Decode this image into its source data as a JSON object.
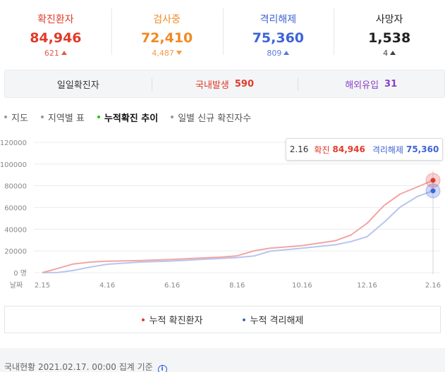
{
  "stats": [
    {
      "label": "확진환자",
      "value": "84,946",
      "delta": "621",
      "direction": "up",
      "color": "#e03b2a"
    },
    {
      "label": "검사중",
      "value": "72,410",
      "delta": "4,487",
      "direction": "down",
      "color": "#f08a24"
    },
    {
      "label": "격리해제",
      "value": "75,360",
      "delta": "809",
      "direction": "up",
      "color": "#3e64d6"
    },
    {
      "label": "사망자",
      "value": "1,538",
      "delta": "4",
      "direction": "up",
      "color": "#222222"
    }
  ],
  "daily": {
    "title": "일일확진자",
    "domestic_label": "국내발생",
    "domestic_value": "590",
    "overseas_label": "해외유입",
    "overseas_value": "31"
  },
  "tabs": [
    {
      "label": "지도",
      "active": false
    },
    {
      "label": "지역별 표",
      "active": false
    },
    {
      "label": "누적확진 추이",
      "active": true
    },
    {
      "label": "일별 신규 확진자수",
      "active": false
    }
  ],
  "tooltip": {
    "date": "2.16",
    "confirmed_label": "확진",
    "confirmed_value": "84,946",
    "released_label": "격리해제",
    "released_value": "75,360"
  },
  "chart_data": {
    "type": "line",
    "xlabel": "날짜",
    "x_ticks": [
      "2.15",
      "4.16",
      "6.16",
      "8.16",
      "10.16",
      "12.16",
      "2.16"
    ],
    "y_ticks": [
      "120000",
      "100000",
      "80000",
      "60000",
      "40000",
      "20000",
      "0 명"
    ],
    "ylim": [
      0,
      120000
    ],
    "grid": true,
    "series": [
      {
        "name": "누적 확진환자",
        "color": "#f2a5a5",
        "x": [
          "2.15",
          "3.1",
          "3.15",
          "4.1",
          "4.16",
          "5.16",
          "6.16",
          "7.16",
          "8.1",
          "8.16",
          "9.1",
          "9.16",
          "10.16",
          "11.16",
          "12.1",
          "12.16",
          "1.1",
          "1.16",
          "2.1",
          "2.16"
        ],
        "values": [
          0,
          4000,
          8000,
          9800,
          10600,
          11100,
          12100,
          13600,
          14300,
          15500,
          20100,
          22600,
          24900,
          29300,
          34700,
          45400,
          61800,
          72300,
          78800,
          84946
        ]
      },
      {
        "name": "누적 격리해제",
        "color": "#b8c5f0",
        "x": [
          "2.15",
          "3.1",
          "3.15",
          "4.1",
          "4.16",
          "5.16",
          "6.16",
          "7.16",
          "8.1",
          "8.16",
          "9.1",
          "9.16",
          "10.16",
          "11.16",
          "12.1",
          "12.16",
          "1.1",
          "1.16",
          "2.1",
          "2.16"
        ],
        "values": [
          0,
          100,
          2000,
          5300,
          7700,
          9700,
          10700,
          12300,
          13200,
          13900,
          15400,
          19800,
          22600,
          25600,
          28700,
          33100,
          46400,
          60300,
          70000,
          75360
        ]
      }
    ]
  },
  "legend": {
    "confirmed_label": "누적 확진환자",
    "released_label": "누적 격리해제"
  },
  "footer": {
    "text": "국내현황 2021.02.17. 00:00 집계 기준",
    "info_icon": "info-icon"
  }
}
